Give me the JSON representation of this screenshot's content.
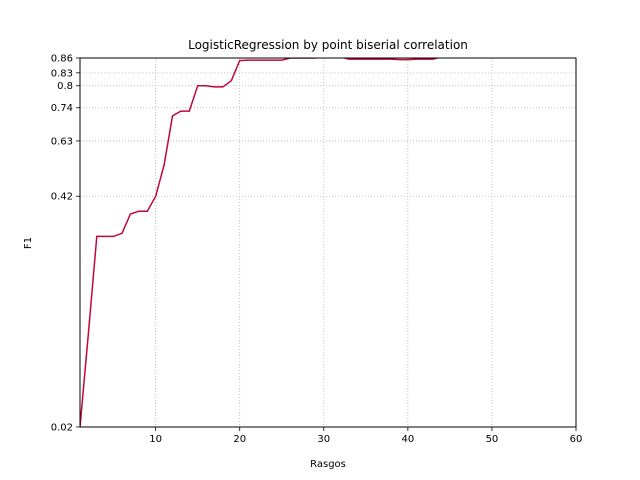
{
  "chart_data": {
    "type": "line",
    "title": "LogisticRegression by point biserial correlation",
    "xlabel": "Rasgos",
    "ylabel": "F1",
    "xlim": [
      1,
      60
    ],
    "ylim": [
      0.02,
      0.86
    ],
    "xticks": [
      10,
      20,
      30,
      40,
      50,
      60
    ],
    "yticks": [
      0.02,
      0.42,
      0.63,
      0.74,
      0.8,
      0.83,
      0.86
    ],
    "ytick_labels": [
      "0.02",
      "0.42",
      "0.63",
      "0.74",
      "0.8",
      "0.83",
      "0.86"
    ],
    "grid": true,
    "line_color": "#c0073a",
    "series": [
      {
        "x": [
          1,
          2,
          3,
          4,
          5,
          6,
          7,
          8,
          9,
          10,
          11,
          12,
          13,
          14,
          15,
          16,
          17,
          18,
          19,
          20,
          21,
          22,
          23,
          24,
          25,
          26,
          27,
          28,
          29,
          30,
          31,
          32,
          33,
          34,
          35,
          36,
          37,
          38,
          39,
          40,
          41,
          42,
          43,
          44,
          45,
          46,
          47,
          48,
          49,
          50,
          51,
          52,
          53,
          54,
          55,
          56,
          57,
          58,
          59,
          60
        ],
        "values": [
          0.02,
          0.08,
          0.28,
          0.28,
          0.28,
          0.29,
          0.355,
          0.365,
          0.365,
          0.42,
          0.54,
          0.715,
          0.73,
          0.73,
          0.8,
          0.8,
          0.797,
          0.797,
          0.812,
          0.855,
          0.856,
          0.856,
          0.856,
          0.856,
          0.856,
          0.86,
          0.86,
          0.86,
          0.86,
          0.862,
          0.862,
          0.862,
          0.858,
          0.858,
          0.858,
          0.858,
          0.858,
          0.858,
          0.857,
          0.857,
          0.858,
          0.858,
          0.858,
          0.862,
          0.862,
          0.862,
          0.862,
          0.862,
          0.862,
          0.862,
          0.862,
          0.862,
          0.862,
          0.862,
          0.862,
          0.862,
          0.862,
          0.862,
          0.862,
          0.862
        ]
      }
    ]
  }
}
